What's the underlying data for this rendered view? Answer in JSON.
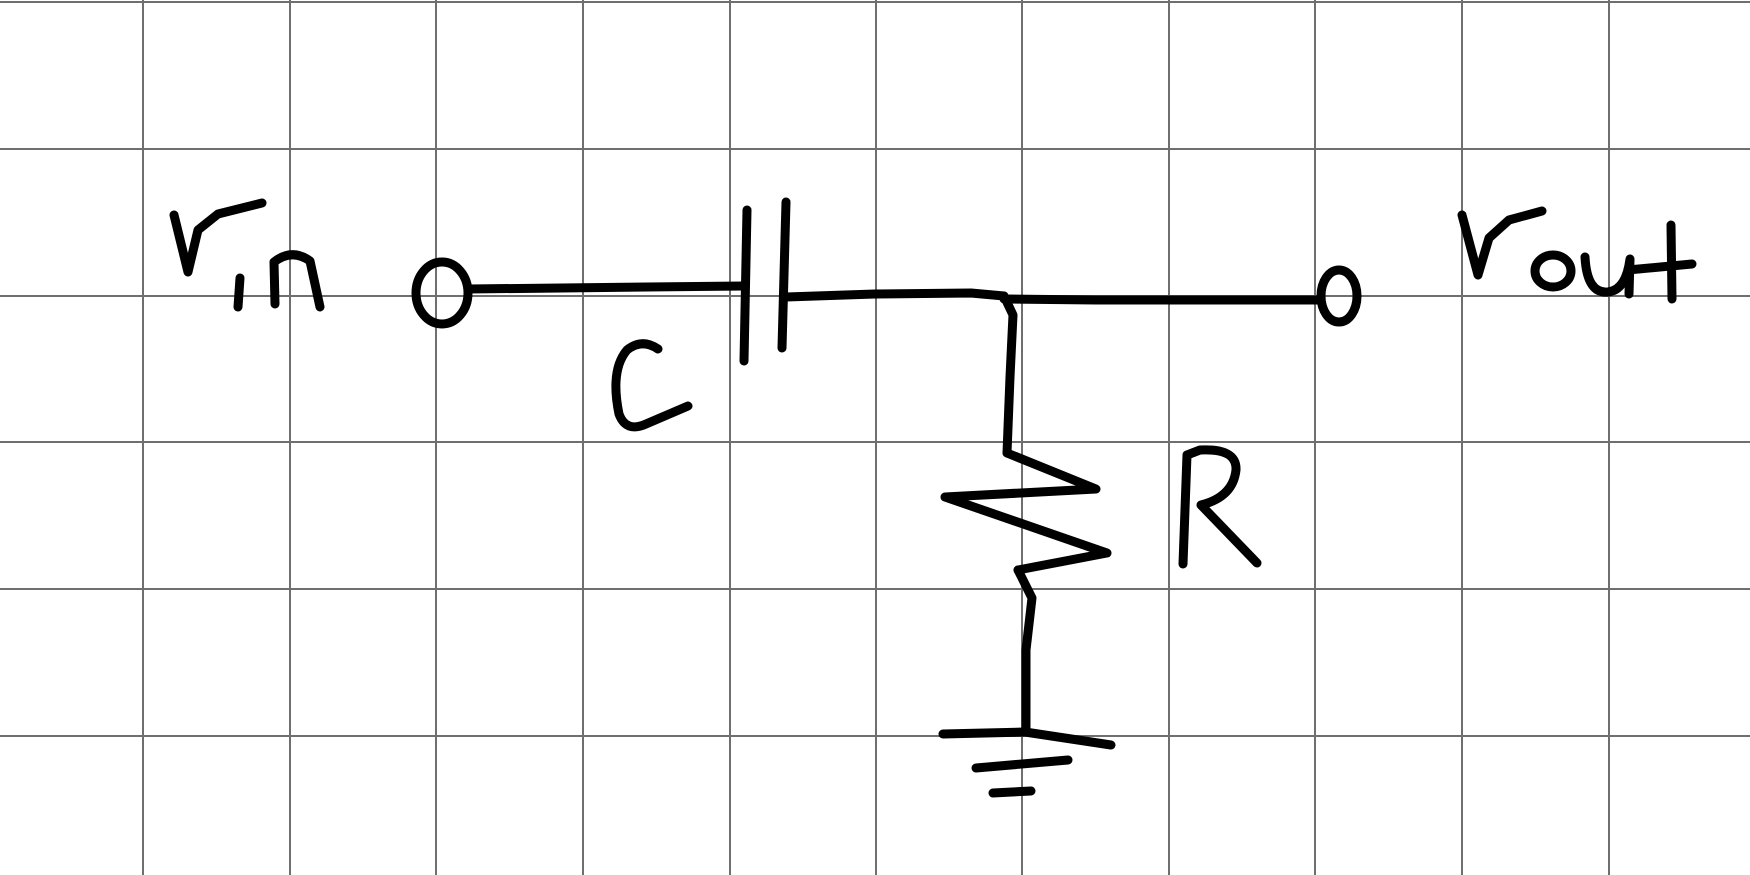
{
  "diagram": {
    "type": "circuit-schematic",
    "background_style": "square-grid-paper",
    "stroke_color": "#000000",
    "grid_color": "#6f6f6f",
    "labels": {
      "input": "vin",
      "output": "vout",
      "capacitor": "C",
      "resistor": "R"
    },
    "components": [
      {
        "kind": "capacitor",
        "label": "C",
        "connection": "series"
      },
      {
        "kind": "resistor",
        "label": "R",
        "connection": "shunt-to-ground"
      },
      {
        "kind": "ground",
        "label": ""
      }
    ]
  }
}
